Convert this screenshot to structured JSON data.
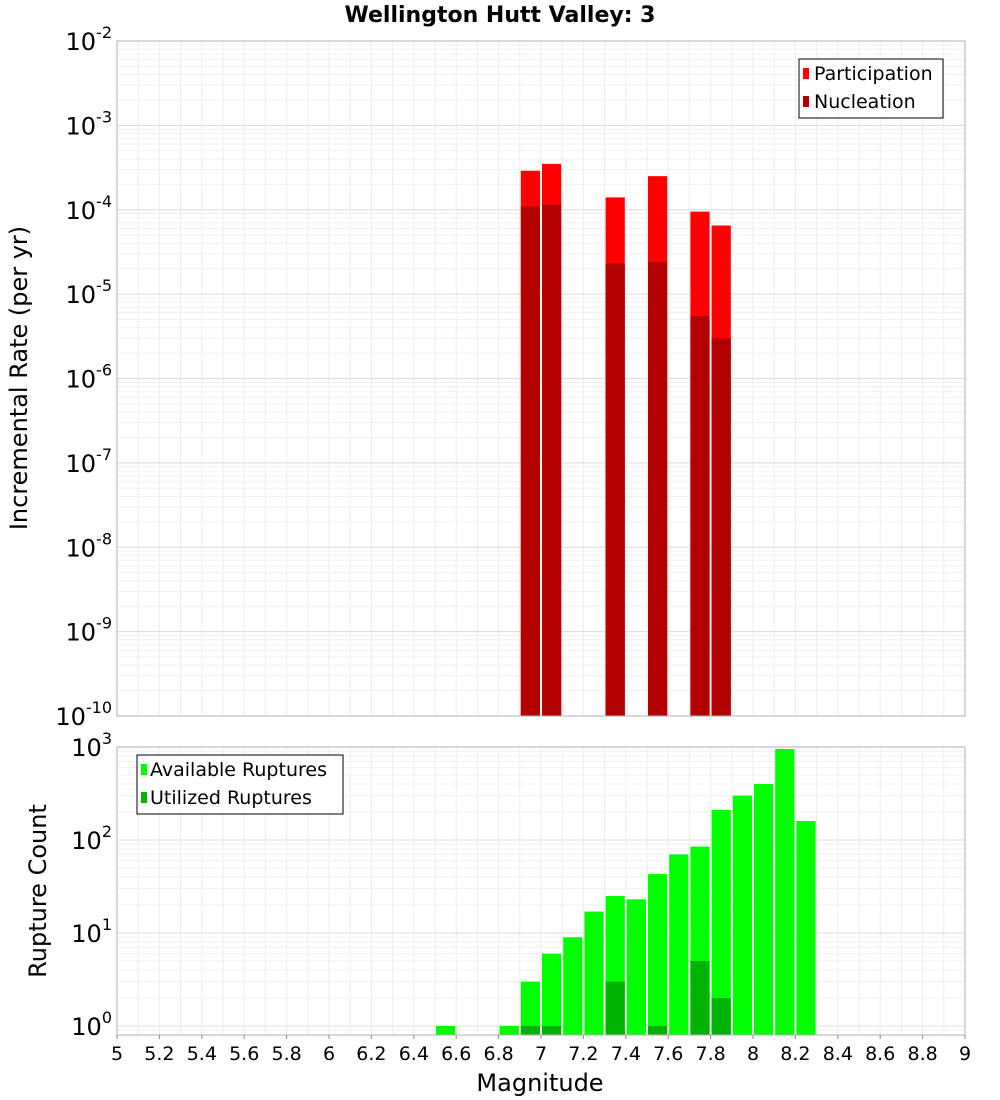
{
  "chart_data": [
    {
      "type": "bar",
      "title": "Wellington Hutt Valley: 3",
      "xlabel": "Magnitude",
      "ylabel": "Incremental Rate (per yr)",
      "yscale": "log",
      "ylim": [
        1e-10,
        0.01
      ],
      "xlim": [
        5,
        9
      ],
      "y_tick_exponents": [
        -10,
        -9,
        -8,
        -7,
        -6,
        -5,
        -4,
        -3,
        -2
      ],
      "grid": true,
      "legend_position": "top-right",
      "colors": {
        "Participation": "#ff0000",
        "Nucleation": "#b30000"
      },
      "series": [
        {
          "name": "Participation",
          "x": [
            6.95,
            7.05,
            7.35,
            7.55,
            7.75,
            7.85
          ],
          "values": [
            0.00029,
            0.00035,
            0.00014,
            0.00025,
            9.5e-05,
            6.5e-05
          ]
        },
        {
          "name": "Nucleation",
          "x": [
            6.95,
            7.05,
            7.35,
            7.55,
            7.75,
            7.85
          ],
          "values": [
            0.00011,
            0.000115,
            2.3e-05,
            2.4e-05,
            5.5e-06,
            3e-06
          ]
        }
      ]
    },
    {
      "type": "bar",
      "xlabel": "Magnitude",
      "ylabel": "Rupture Count",
      "yscale": "log",
      "ylim": [
        0.8,
        1000
      ],
      "xlim": [
        5,
        9
      ],
      "y_tick_exponents": [
        0,
        1,
        2,
        3
      ],
      "x_ticks": [
        "5",
        "5.2",
        "5.4",
        "5.6",
        "5.8",
        "6",
        "6.2",
        "6.4",
        "6.6",
        "6.8",
        "7",
        "7.2",
        "7.4",
        "7.6",
        "7.8",
        "8",
        "8.2",
        "8.4",
        "8.6",
        "8.8",
        "9"
      ],
      "grid": true,
      "legend_position": "top-left",
      "colors": {
        "Available Ruptures": "#00ff00",
        "Utilized Ruptures": "#00b300"
      },
      "series": [
        {
          "name": "Available Ruptures",
          "x": [
            6.55,
            6.85,
            6.95,
            7.05,
            7.15,
            7.25,
            7.35,
            7.45,
            7.55,
            7.65,
            7.75,
            7.85,
            7.95,
            8.05,
            8.15,
            8.25
          ],
          "values": [
            1,
            1,
            3,
            6,
            9,
            17,
            25,
            23,
            43,
            70,
            85,
            210,
            300,
            400,
            950,
            160
          ]
        },
        {
          "name": "Utilized Ruptures",
          "x": [
            6.95,
            7.05,
            7.35,
            7.55,
            7.75,
            7.85
          ],
          "values": [
            1,
            1,
            3,
            1,
            5,
            2
          ]
        }
      ]
    }
  ]
}
